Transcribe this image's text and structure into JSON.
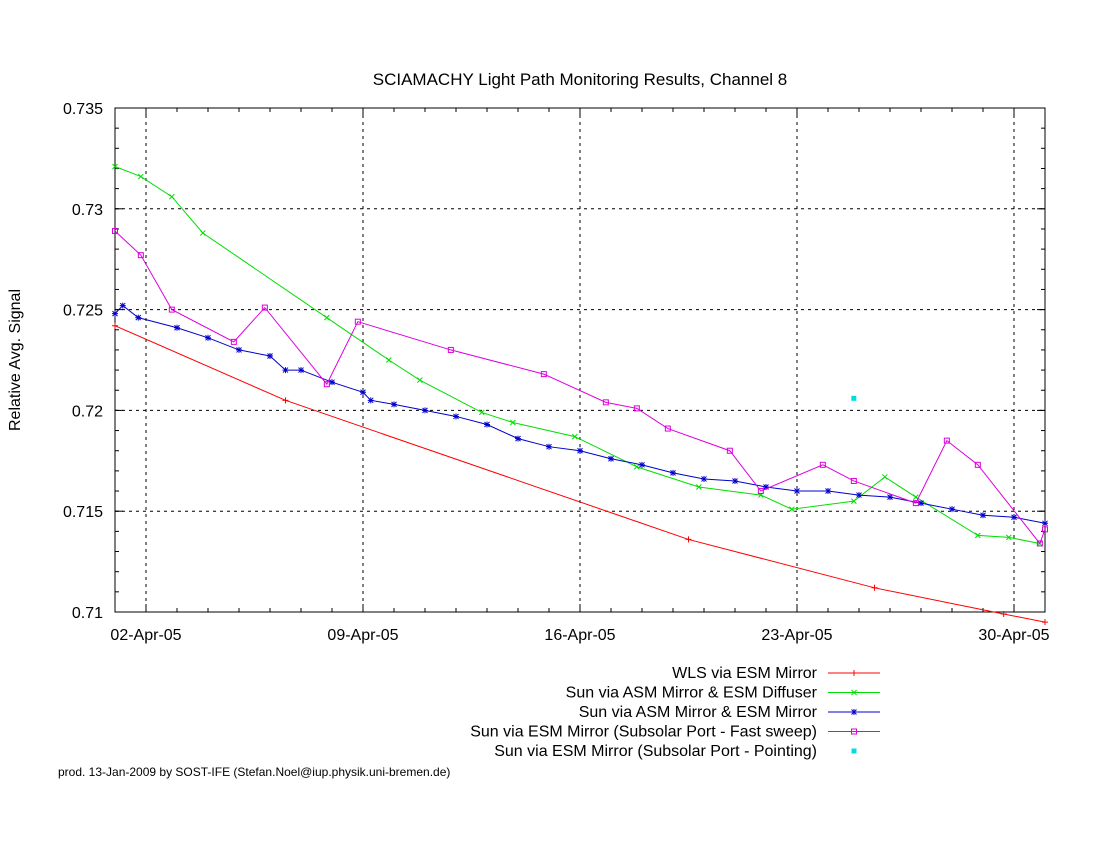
{
  "chart_data": {
    "type": "line",
    "title": "SCIAMACHY Light Path Monitoring Results, Channel 8",
    "ylabel": "Relative Avg. Signal",
    "xlabel": "",
    "x_type": "date",
    "xlim": [
      "2005-04-01",
      "2005-05-01"
    ],
    "ylim": [
      0.71,
      0.735
    ],
    "x_ticks": [
      {
        "date": "2005-04-02",
        "label": "02-Apr-05"
      },
      {
        "date": "2005-04-09",
        "label": "09-Apr-05"
      },
      {
        "date": "2005-04-16",
        "label": "16-Apr-05"
      },
      {
        "date": "2005-04-23",
        "label": "23-Apr-05"
      },
      {
        "date": "2005-04-30",
        "label": "30-Apr-05"
      }
    ],
    "y_ticks": [
      {
        "value": 0.71,
        "label": "0.71"
      },
      {
        "value": 0.715,
        "label": "0.715"
      },
      {
        "value": 0.72,
        "label": "0.72"
      },
      {
        "value": 0.725,
        "label": "0.725"
      },
      {
        "value": 0.73,
        "label": "0.73"
      },
      {
        "value": 0.735,
        "label": "0.735"
      }
    ],
    "grid": true,
    "legend_position": "below",
    "series": [
      {
        "name": "WLS via ESM Mirror",
        "color": "#ff0000",
        "marker": "plus",
        "points": [
          [
            "2005-04-01T00:00",
            0.7242
          ],
          [
            "2005-04-06T12:00",
            0.7205
          ],
          [
            "2005-04-19T12:00",
            0.7136
          ],
          [
            "2005-04-25T12:00",
            0.7112
          ],
          [
            "2005-04-29T16:00",
            0.7099
          ],
          [
            "2005-05-01T00:00",
            0.7095
          ]
        ]
      },
      {
        "name": "Sun via ASM Mirror & ESM Diffuser",
        "color": "#00dd00",
        "marker": "cross",
        "points": [
          [
            "2005-04-01T00:00",
            0.7321
          ],
          [
            "2005-04-01T20:00",
            0.7316
          ],
          [
            "2005-04-02T20:00",
            0.7306
          ],
          [
            "2005-04-03T20:00",
            0.7288
          ],
          [
            "2005-04-07T20:00",
            0.7246
          ],
          [
            "2005-04-09T20:00",
            0.7225
          ],
          [
            "2005-04-10T20:00",
            0.7215
          ],
          [
            "2005-04-12T20:00",
            0.7199
          ],
          [
            "2005-04-13T20:00",
            0.7194
          ],
          [
            "2005-04-15T20:00",
            0.7187
          ],
          [
            "2005-04-17T20:00",
            0.7172
          ],
          [
            "2005-04-19T20:00",
            0.7162
          ],
          [
            "2005-04-21T20:00",
            0.7158
          ],
          [
            "2005-04-22T20:00",
            0.7151
          ],
          [
            "2005-04-24T20:00",
            0.7155
          ],
          [
            "2005-04-25T20:00",
            0.7167
          ],
          [
            "2005-04-26T20:00",
            0.7157
          ],
          [
            "2005-04-28T20:00",
            0.7138
          ],
          [
            "2005-04-29T20:00",
            0.7137
          ],
          [
            "2005-04-30T20:00",
            0.7134
          ]
        ]
      },
      {
        "name": "Sun via ASM Mirror & ESM Mirror",
        "color": "#0000cc",
        "marker": "star",
        "points": [
          [
            "2005-04-01T00:00",
            0.7248
          ],
          [
            "2005-04-01T06:00",
            0.7252
          ],
          [
            "2005-04-01T18:00",
            0.7246
          ],
          [
            "2005-04-03T00:00",
            0.7241
          ],
          [
            "2005-04-04T00:00",
            0.7236
          ],
          [
            "2005-04-05T00:00",
            0.723
          ],
          [
            "2005-04-06T00:00",
            0.7227
          ],
          [
            "2005-04-06T12:00",
            0.722
          ],
          [
            "2005-04-07T00:00",
            0.722
          ],
          [
            "2005-04-08T00:00",
            0.7214
          ],
          [
            "2005-04-09T00:00",
            0.7209
          ],
          [
            "2005-04-09T06:00",
            0.7205
          ],
          [
            "2005-04-10T00:00",
            0.7203
          ],
          [
            "2005-04-11T00:00",
            0.72
          ],
          [
            "2005-04-12T00:00",
            0.7197
          ],
          [
            "2005-04-13T00:00",
            0.7193
          ],
          [
            "2005-04-14T00:00",
            0.7186
          ],
          [
            "2005-04-15T00:00",
            0.7182
          ],
          [
            "2005-04-16T00:00",
            0.718
          ],
          [
            "2005-04-17T00:00",
            0.7176
          ],
          [
            "2005-04-18T00:00",
            0.7173
          ],
          [
            "2005-04-19T00:00",
            0.7169
          ],
          [
            "2005-04-20T00:00",
            0.7166
          ],
          [
            "2005-04-21T00:00",
            0.7165
          ],
          [
            "2005-04-22T00:00",
            0.7162
          ],
          [
            "2005-04-23T00:00",
            0.716
          ],
          [
            "2005-04-24T00:00",
            0.716
          ],
          [
            "2005-04-25T00:00",
            0.7158
          ],
          [
            "2005-04-26T00:00",
            0.7157
          ],
          [
            "2005-04-27T00:00",
            0.7154
          ],
          [
            "2005-04-28T00:00",
            0.7151
          ],
          [
            "2005-04-29T00:00",
            0.7148
          ],
          [
            "2005-04-30T00:00",
            0.7147
          ],
          [
            "2005-05-01T00:00",
            0.7144
          ]
        ]
      },
      {
        "name": "Sun via ESM Mirror (Subsolar Port - Fast sweep)",
        "color": "#dd00dd",
        "marker": "square",
        "points": [
          [
            "2005-04-01T00:00",
            0.7289
          ],
          [
            "2005-04-01T20:00",
            0.7277
          ],
          [
            "2005-04-02T20:00",
            0.725
          ],
          [
            "2005-04-04T20:00",
            0.7234
          ],
          [
            "2005-04-05T20:00",
            0.7251
          ],
          [
            "2005-04-07T20:00",
            0.7213
          ],
          [
            "2005-04-08T20:00",
            0.7244
          ],
          [
            "2005-04-11T20:00",
            0.723
          ],
          [
            "2005-04-14T20:00",
            0.7218
          ],
          [
            "2005-04-16T20:00",
            0.7204
          ],
          [
            "2005-04-17T20:00",
            0.7201
          ],
          [
            "2005-04-18T20:00",
            0.7191
          ],
          [
            "2005-04-20T20:00",
            0.718
          ],
          [
            "2005-04-21T20:00",
            0.716
          ],
          [
            "2005-04-23T20:00",
            0.7173
          ],
          [
            "2005-04-24T20:00",
            0.7165
          ],
          [
            "2005-04-26T20:00",
            0.7154
          ],
          [
            "2005-04-27T20:00",
            0.7185
          ],
          [
            "2005-04-28T20:00",
            0.7173
          ],
          [
            "2005-04-30T20:00",
            0.7134
          ],
          [
            "2005-05-01T00:00",
            0.7141
          ]
        ]
      },
      {
        "name": "Sun via ESM Mirror (Subsolar Port - Pointing)",
        "color": "#00dddd",
        "marker": "dot",
        "points": [
          [
            "2005-04-24T20:00",
            0.7206
          ]
        ]
      }
    ],
    "footer": "prod. 13-Jan-2009 by SOST-IFE (Stefan.Noel@iup.physik.uni-bremen.de)"
  }
}
